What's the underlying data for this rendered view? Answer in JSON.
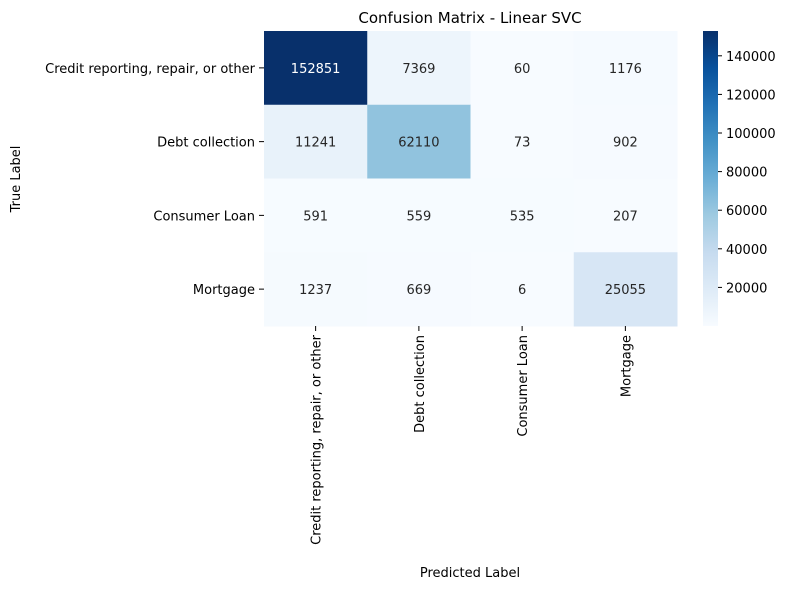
{
  "chart_data": {
    "type": "heatmap",
    "title": "Confusion Matrix - Linear SVC",
    "xlabel": "Predicted Label",
    "ylabel": "True Label",
    "x_categories": [
      "Credit reporting, repair, or other",
      "Debt collection",
      "Consumer Loan",
      "Mortgage"
    ],
    "y_categories": [
      "Credit reporting, repair, or other",
      "Debt collection",
      "Consumer Loan",
      "Mortgage"
    ],
    "values": [
      [
        152851,
        7369,
        60,
        1176
      ],
      [
        11241,
        62110,
        73,
        902
      ],
      [
        591,
        559,
        535,
        207
      ],
      [
        1237,
        669,
        6,
        25055
      ]
    ],
    "colormap": "Blues",
    "colorbar": {
      "vmin": 6,
      "vmax": 152851,
      "ticks": [
        20000,
        40000,
        60000,
        80000,
        100000,
        120000,
        140000
      ]
    },
    "light_text_color": "#ffffff",
    "dark_text_color": "#262626"
  }
}
